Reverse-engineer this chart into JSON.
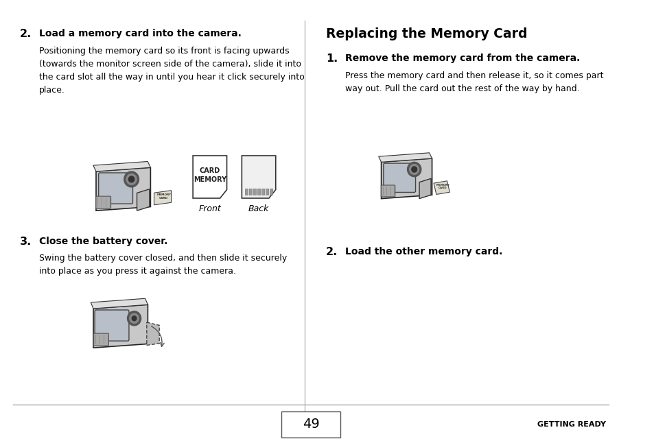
{
  "bg_color": "#ffffff",
  "page_number": "49",
  "footer_right": "GETTING READY",
  "section2_heading_num": "2.",
  "section2_heading_text": "Load a memory card into the camera.",
  "section2_body": "Positioning the memory card so its front is facing upwards\n(towards the monitor screen side of the camera), slide it into\nthe card slot all the way in until you hear it click securely into\nplace.",
  "front_label": "Front",
  "back_label": "Back",
  "memory_card_label_line1": "MEMORY",
  "memory_card_label_line2": "CARD",
  "section3_heading_num": "3.",
  "section3_heading_text": "Close the battery cover.",
  "section3_body": "Swing the battery cover closed, and then slide it securely\ninto place as you press it against the camera.",
  "right_title": "Replacing the Memory Card",
  "right_section1_num": "1.",
  "right_section1_heading": "Remove the memory card from the camera.",
  "right_section1_body": "Press the memory card and then release it, so it comes part\nway out. Pull the card out the rest of the way by hand.",
  "right_section2_num": "2.",
  "right_section2_heading": "Load the other memory card.",
  "heading_fontsize": 10.0,
  "body_fontsize": 9.0,
  "title_fontsize": 13.5,
  "number_fontsize": 11.5,
  "footer_fontsize": 8.0
}
